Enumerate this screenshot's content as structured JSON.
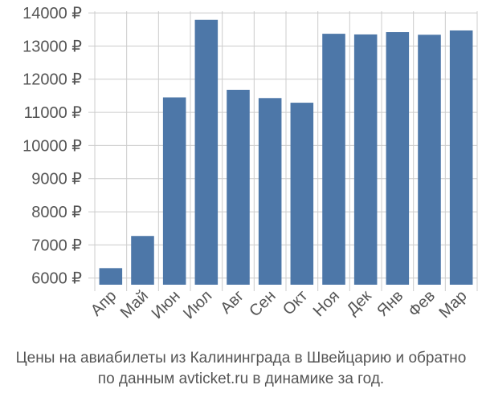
{
  "chart_data": {
    "type": "bar",
    "categories": [
      "Апр",
      "Май",
      "Июн",
      "Июл",
      "Авг",
      "Сен",
      "Окт",
      "Ноя",
      "Дек",
      "Янв",
      "Фев",
      "Мар"
    ],
    "values": [
      6300,
      7270,
      11450,
      13790,
      11680,
      11430,
      11290,
      13370,
      13350,
      13420,
      13340,
      13470
    ],
    "yticks": [
      6000,
      7000,
      8000,
      9000,
      10000,
      11000,
      12000,
      13000,
      14000
    ],
    "ytick_labels": [
      "6000 ₽",
      "7000 ₽",
      "8000 ₽",
      "9000 ₽",
      "10000 ₽",
      "11000 ₽",
      "12000 ₽",
      "13000 ₽",
      "14000 ₽"
    ],
    "ylim": [
      5800,
      14050
    ],
    "grid": true,
    "bar_color": "#4d77a8",
    "grid_color": "#cccccc",
    "caption": [
      "Цены на авиабилеты из Калининграда в Швейцарию и обратно",
      "по данным avticket.ru в динамике за год."
    ]
  }
}
